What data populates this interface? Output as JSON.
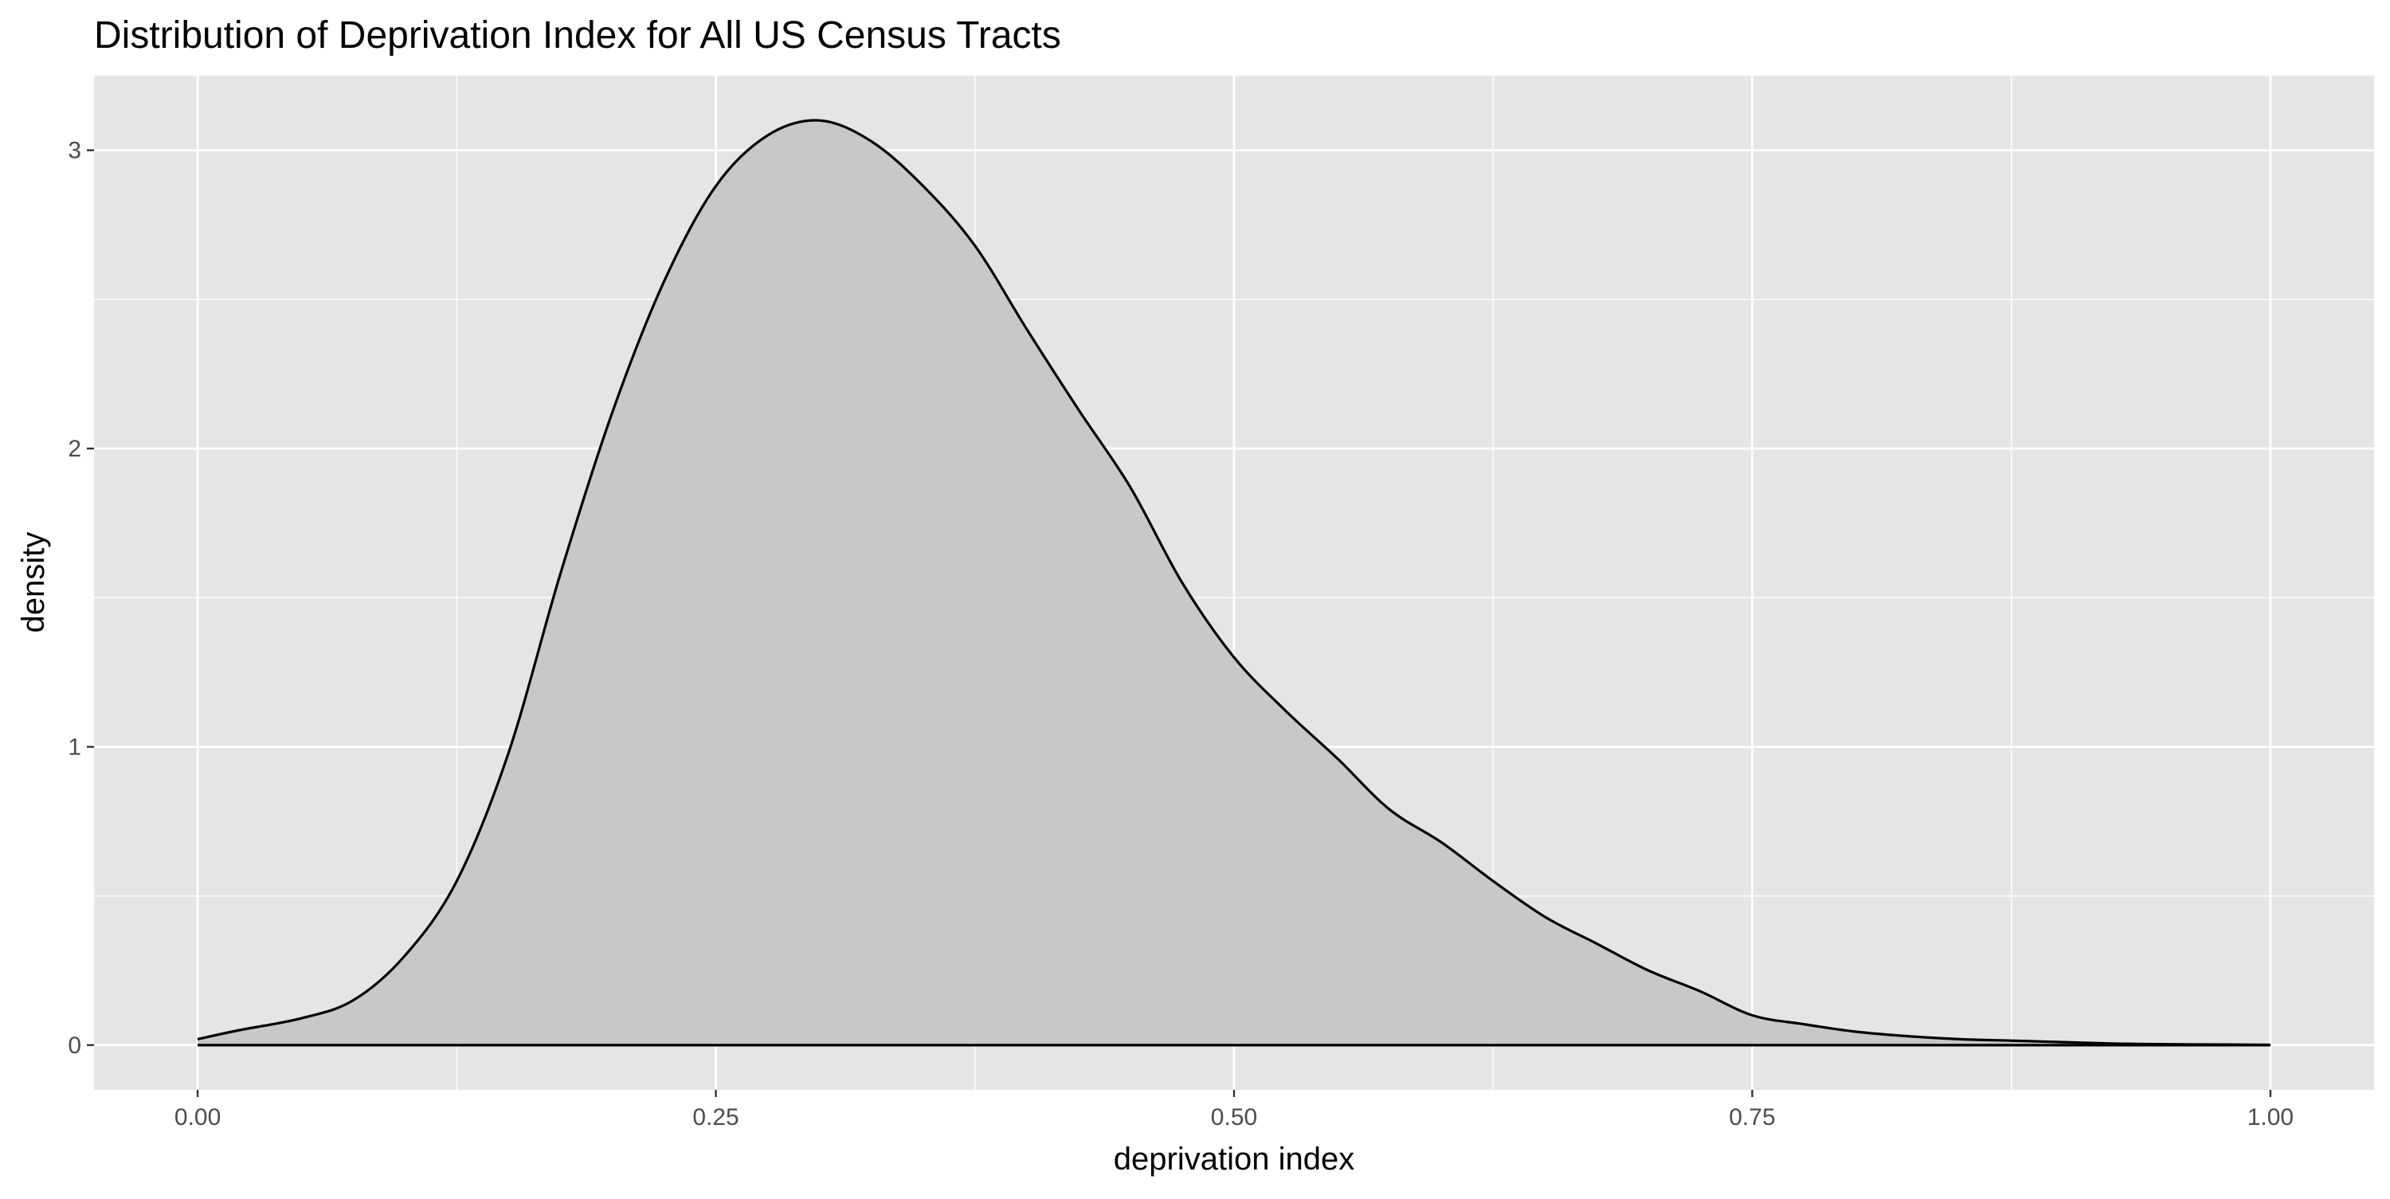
{
  "chart_data": {
    "type": "area",
    "title": "Distribution of Deprivation Index for All US Census Tracts",
    "xlabel": "deprivation index",
    "ylabel": "density",
    "xlim": [
      -0.05,
      1.05
    ],
    "ylim": [
      -0.15,
      3.25
    ],
    "x_ticks": [
      0.0,
      0.25,
      0.5,
      0.75,
      1.0
    ],
    "x_tick_labels": [
      "0.00",
      "0.25",
      "0.50",
      "0.75",
      "1.00"
    ],
    "y_ticks": [
      0,
      1,
      2,
      3
    ],
    "y_tick_labels": [
      "0",
      "1",
      "2",
      "3"
    ],
    "grid": true,
    "legend": "none",
    "colors": {
      "panel": "#e5e5e5",
      "grid": "#ffffff",
      "fill": "#c8c8c8",
      "line": "#000000"
    },
    "series": [
      {
        "x": [
          0.0,
          0.02,
          0.05,
          0.075,
          0.1,
          0.125,
          0.15,
          0.175,
          0.2,
          0.225,
          0.25,
          0.275,
          0.3,
          0.325,
          0.35,
          0.375,
          0.4,
          0.425,
          0.45,
          0.475,
          0.5,
          0.525,
          0.55,
          0.575,
          0.6,
          0.625,
          0.65,
          0.675,
          0.7,
          0.725,
          0.75,
          0.775,
          0.8,
          0.825,
          0.85,
          0.875,
          0.9,
          0.925,
          0.95,
          0.975,
          1.0
        ],
        "y": [
          0.02,
          0.05,
          0.09,
          0.15,
          0.3,
          0.55,
          0.98,
          1.58,
          2.12,
          2.56,
          2.88,
          3.05,
          3.1,
          3.03,
          2.88,
          2.68,
          2.4,
          2.13,
          1.87,
          1.55,
          1.3,
          1.12,
          0.96,
          0.79,
          0.68,
          0.55,
          0.43,
          0.34,
          0.25,
          0.18,
          0.1,
          0.07,
          0.045,
          0.03,
          0.02,
          0.015,
          0.01,
          0.005,
          0.003,
          0.002,
          0.001
        ]
      }
    ]
  }
}
